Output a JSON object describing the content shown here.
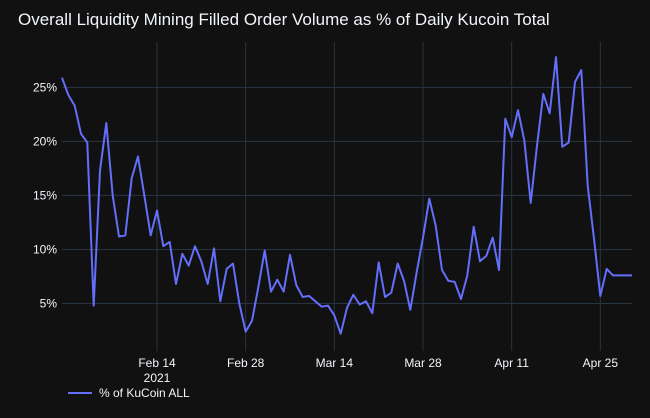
{
  "chart_data": {
    "type": "line",
    "title": "Overall Liquidity Mining Filled Order Volume as % of Daily Kucoin Total",
    "xlabel": "",
    "ylabel": "",
    "x_start": "2021-01-30",
    "x_end": "2021-04-30",
    "x_ticks": [
      {
        "date": "2021-02-14",
        "label": "Feb 14",
        "sublabel": "2021"
      },
      {
        "date": "2021-02-28",
        "label": "Feb 28",
        "sublabel": ""
      },
      {
        "date": "2021-03-14",
        "label": "Mar 14",
        "sublabel": ""
      },
      {
        "date": "2021-03-28",
        "label": "Mar 28",
        "sublabel": ""
      },
      {
        "date": "2021-04-11",
        "label": "Apr 11",
        "sublabel": ""
      },
      {
        "date": "2021-04-25",
        "label": "Apr 25",
        "sublabel": ""
      }
    ],
    "y_ticks": [
      {
        "value": 5,
        "label": "5%"
      },
      {
        "value": 10,
        "label": "10%"
      },
      {
        "value": 15,
        "label": "15%"
      },
      {
        "value": 20,
        "label": "20%"
      },
      {
        "value": 25,
        "label": "25%"
      }
    ],
    "ylim": [
      0.6,
      29.2
    ],
    "grid": true,
    "legend_position": "bottom-left",
    "series": [
      {
        "name": "% of KuCoin ALL",
        "color": "#636efa",
        "x": [
          "2021-01-30",
          "2021-01-31",
          "2021-02-01",
          "2021-02-02",
          "2021-02-03",
          "2021-02-04",
          "2021-02-05",
          "2021-02-06",
          "2021-02-07",
          "2021-02-08",
          "2021-02-09",
          "2021-02-10",
          "2021-02-11",
          "2021-02-12",
          "2021-02-13",
          "2021-02-14",
          "2021-02-15",
          "2021-02-16",
          "2021-02-17",
          "2021-02-18",
          "2021-02-19",
          "2021-02-20",
          "2021-02-21",
          "2021-02-22",
          "2021-02-23",
          "2021-02-24",
          "2021-02-25",
          "2021-02-26",
          "2021-02-27",
          "2021-02-28",
          "2021-03-01",
          "2021-03-02",
          "2021-03-03",
          "2021-03-04",
          "2021-03-05",
          "2021-03-06",
          "2021-03-07",
          "2021-03-08",
          "2021-03-09",
          "2021-03-10",
          "2021-03-11",
          "2021-03-12",
          "2021-03-13",
          "2021-03-14",
          "2021-03-15",
          "2021-03-16",
          "2021-03-17",
          "2021-03-18",
          "2021-03-19",
          "2021-03-20",
          "2021-03-21",
          "2021-03-22",
          "2021-03-23",
          "2021-03-24",
          "2021-03-25",
          "2021-03-26",
          "2021-03-27",
          "2021-03-28",
          "2021-03-29",
          "2021-03-30",
          "2021-03-31",
          "2021-04-01",
          "2021-04-02",
          "2021-04-03",
          "2021-04-04",
          "2021-04-05",
          "2021-04-06",
          "2021-04-07",
          "2021-04-08",
          "2021-04-09",
          "2021-04-10",
          "2021-04-11",
          "2021-04-12",
          "2021-04-13",
          "2021-04-14",
          "2021-04-15",
          "2021-04-16",
          "2021-04-17",
          "2021-04-18",
          "2021-04-19",
          "2021-04-20",
          "2021-04-21",
          "2021-04-22",
          "2021-04-23",
          "2021-04-24",
          "2021-04-25",
          "2021-04-26",
          "2021-04-27",
          "2021-04-28",
          "2021-04-29",
          "2021-04-30"
        ],
        "y": [
          25.9,
          24.3,
          23.3,
          20.7,
          19.9,
          4.8,
          17.3,
          21.7,
          15.0,
          11.2,
          11.3,
          16.6,
          18.6,
          15.0,
          11.3,
          13.6,
          10.3,
          10.7,
          6.8,
          9.6,
          8.5,
          10.3,
          8.9,
          6.8,
          10.1,
          5.2,
          8.2,
          8.7,
          5.0,
          2.4,
          3.4,
          6.5,
          9.9,
          6.1,
          7.2,
          6.1,
          9.5,
          6.7,
          5.6,
          5.7,
          5.2,
          4.7,
          4.8,
          3.9,
          2.2,
          4.6,
          5.8,
          4.9,
          5.2,
          4.1,
          8.8,
          5.6,
          6.0,
          8.7,
          7.1,
          4.4,
          7.9,
          11.1,
          14.7,
          12.2,
          8.1,
          7.1,
          7.0,
          5.4,
          7.6,
          12.1,
          8.9,
          9.4,
          11.1,
          8.1,
          22.1,
          20.4,
          22.9,
          20.1,
          14.3,
          19.6,
          24.4,
          22.6,
          27.8,
          19.5,
          19.9,
          25.5,
          26.6,
          15.9,
          11.0,
          5.7,
          8.2,
          7.6,
          7.6,
          7.6,
          7.6
        ]
      }
    ]
  }
}
